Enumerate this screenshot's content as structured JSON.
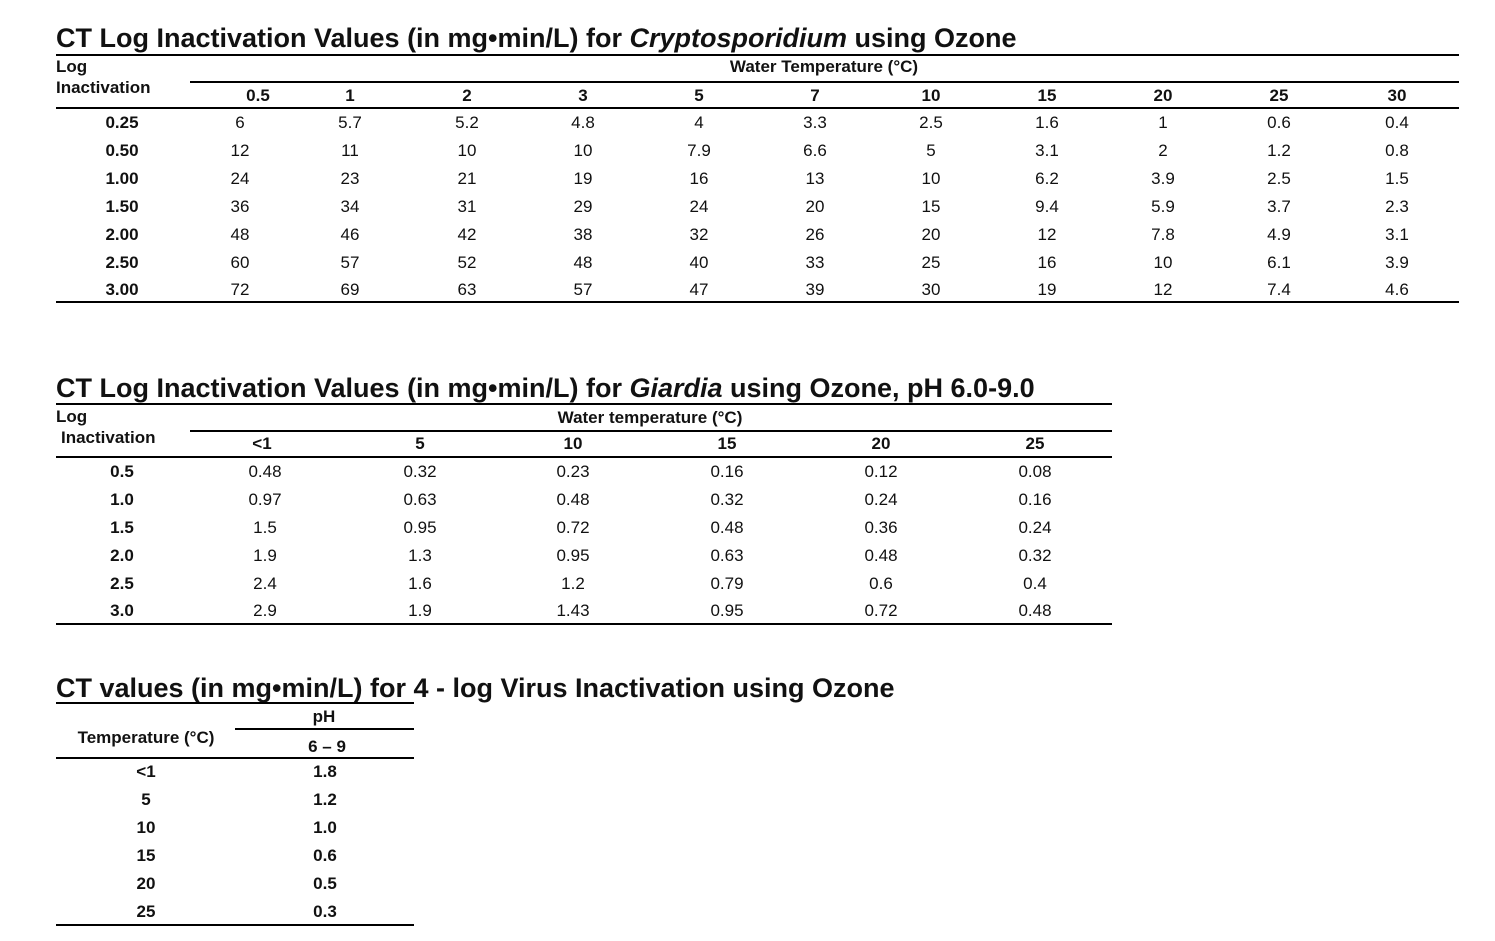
{
  "crypto": {
    "title_pre": "CT Log Inactivation Values  (in mg•min/L) for ",
    "title_org": "Cryptosporidium",
    "title_post": " using Ozone",
    "row_header_line1": "Log",
    "row_header_line2": "Inactivation",
    "group_header": "Water Temperature (°C)",
    "columns": [
      "0.5",
      "1",
      "2",
      "3",
      "5",
      "7",
      "10",
      "15",
      "20",
      "25",
      "30"
    ],
    "rows": [
      {
        "label": "0.25",
        "values": [
          "6",
          "5.7",
          "5.2",
          "4.8",
          "4",
          "3.3",
          "2.5",
          "1.6",
          "1",
          "0.6",
          "0.4"
        ]
      },
      {
        "label": "0.50",
        "values": [
          "12",
          "11",
          "10",
          "10",
          "7.9",
          "6.6",
          "5",
          "3.1",
          "2",
          "1.2",
          "0.8"
        ]
      },
      {
        "label": "1.00",
        "values": [
          "24",
          "23",
          "21",
          "19",
          "16",
          "13",
          "10",
          "6.2",
          "3.9",
          "2.5",
          "1.5"
        ]
      },
      {
        "label": "1.50",
        "values": [
          "36",
          "34",
          "31",
          "29",
          "24",
          "20",
          "15",
          "9.4",
          "5.9",
          "3.7",
          "2.3"
        ]
      },
      {
        "label": "2.00",
        "values": [
          "48",
          "46",
          "42",
          "38",
          "32",
          "26",
          "20",
          "12",
          "7.8",
          "4.9",
          "3.1"
        ]
      },
      {
        "label": "2.50",
        "values": [
          "60",
          "57",
          "52",
          "48",
          "40",
          "33",
          "25",
          "16",
          "10",
          "6.1",
          "3.9"
        ]
      },
      {
        "label": "3.00",
        "values": [
          "72",
          "69",
          "63",
          "57",
          "47",
          "39",
          "30",
          "19",
          "12",
          "7.4",
          "4.6"
        ]
      }
    ]
  },
  "giardia": {
    "title_pre": "CT Log Inactivation Values (in mg•min/L) for ",
    "title_org": "Giardia",
    "title_post": " using Ozone, pH 6.0-9.0",
    "row_header_line1": "Log",
    "row_header_line2": "Inactivation",
    "group_header": "Water temperature (°C)",
    "columns": [
      "<1",
      "5",
      "10",
      "15",
      "20",
      "25"
    ],
    "rows": [
      {
        "label": "0.5",
        "values": [
          "0.48",
          "0.32",
          "0.23",
          "0.16",
          "0.12",
          "0.08"
        ]
      },
      {
        "label": "1.0",
        "values": [
          "0.97",
          "0.63",
          "0.48",
          "0.32",
          "0.24",
          "0.16"
        ]
      },
      {
        "label": "1.5",
        "values": [
          "1.5",
          "0.95",
          "0.72",
          "0.48",
          "0.36",
          "0.24"
        ]
      },
      {
        "label": "2.0",
        "values": [
          "1.9",
          "1.3",
          "0.95",
          "0.63",
          "0.48",
          "0.32"
        ]
      },
      {
        "label": "2.5",
        "values": [
          "2.4",
          "1.6",
          "1.2",
          "0.79",
          "0.6",
          "0.4"
        ]
      },
      {
        "label": "3.0",
        "values": [
          "2.9",
          "1.9",
          "1.43",
          "0.95",
          "0.72",
          "0.48"
        ]
      }
    ]
  },
  "virus": {
    "title": "CT values (in mg•min/L) for 4 - log Virus Inactivation using Ozone",
    "row_header": "Temperature (°C)",
    "group_header": "pH",
    "column": "6 – 9",
    "rows": [
      {
        "label": "<1",
        "value": "1.8"
      },
      {
        "label": "5",
        "value": "1.2"
      },
      {
        "label": "10",
        "value": "1.0"
      },
      {
        "label": "15",
        "value": "0.6"
      },
      {
        "label": "20",
        "value": "0.5"
      },
      {
        "label": "25",
        "value": "0.3"
      }
    ]
  }
}
